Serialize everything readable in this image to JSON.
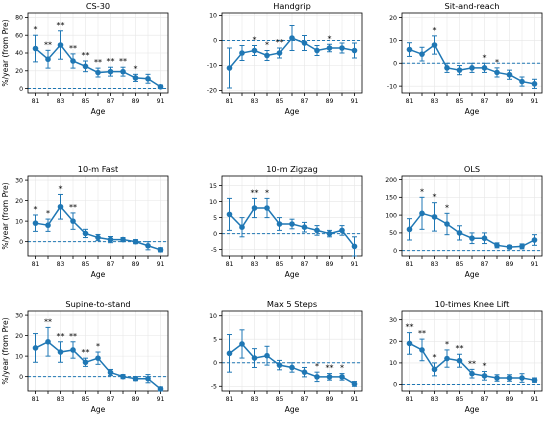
{
  "figure": {
    "style": {
      "series_color": "#1f77b4",
      "baseline_color": "#1f77b4",
      "grid_color": "#e6e6e6",
      "axis_color": "#000000"
    }
  },
  "chart_data": [
    {
      "type": "line",
      "title": "CS-30",
      "xlabel": "Age",
      "ylabel": "%/year (from Pre)",
      "x": [
        81,
        82,
        83,
        84,
        85,
        86,
        87,
        88,
        89,
        90,
        91
      ],
      "x_tick_labels": [
        "81",
        "83",
        "85",
        "87",
        "89",
        "91"
      ],
      "ylim": [
        -5,
        85
      ],
      "y_ticks": [
        0,
        20,
        40,
        60,
        80
      ],
      "values": [
        45,
        33,
        49,
        31,
        25,
        18,
        19,
        19,
        12,
        11,
        2
      ],
      "errors": [
        15,
        10,
        16,
        8,
        6,
        5,
        5,
        5,
        4,
        5,
        2
      ],
      "significance": [
        "*",
        "**",
        "**",
        "**",
        "**",
        "**",
        "**",
        "**",
        "*",
        "",
        ""
      ],
      "grid": true,
      "baseline": 0
    },
    {
      "type": "line",
      "title": "Handgrip",
      "xlabel": "Age",
      "ylabel": "",
      "x": [
        81,
        82,
        83,
        84,
        85,
        86,
        87,
        88,
        89,
        90,
        91
      ],
      "x_tick_labels": [
        "81",
        "83",
        "85",
        "87",
        "89",
        "91"
      ],
      "ylim": [
        -21,
        11
      ],
      "y_ticks": [
        -20,
        -10,
        0,
        10
      ],
      "values": [
        -11,
        -5,
        -4,
        -6,
        -5,
        1,
        -1,
        -4,
        -3,
        -3,
        -4
      ],
      "errors": [
        8,
        3,
        2,
        2,
        2,
        5,
        3,
        2,
        1.5,
        2,
        3
      ],
      "significance": [
        "",
        "",
        "*",
        "*",
        "**",
        "",
        "",
        "",
        "*",
        "",
        ""
      ],
      "grid": true,
      "baseline": 0
    },
    {
      "type": "line",
      "title": "Sit-and-reach",
      "xlabel": "Age",
      "ylabel": "",
      "x": [
        81,
        82,
        83,
        84,
        85,
        86,
        87,
        88,
        89,
        90,
        91
      ],
      "x_tick_labels": [
        "81",
        "83",
        "85",
        "87",
        "89",
        "91"
      ],
      "ylim": [
        -13,
        22
      ],
      "y_ticks": [
        -10,
        0,
        10,
        20
      ],
      "values": [
        6,
        4,
        8,
        -2,
        -3,
        -2,
        -2,
        -4,
        -5,
        -8,
        -9
      ],
      "errors": [
        3,
        3,
        4,
        2,
        2,
        2,
        2,
        2,
        2,
        2,
        2
      ],
      "significance": [
        "",
        "",
        "*",
        "",
        "",
        "",
        "*",
        "*",
        "",
        "",
        ""
      ],
      "grid": true,
      "baseline": 0
    },
    {
      "type": "line",
      "title": "10-m Fast",
      "xlabel": "Age",
      "ylabel": "%/year (from Pre)",
      "x": [
        81,
        82,
        83,
        84,
        85,
        86,
        87,
        88,
        89,
        90,
        91
      ],
      "x_tick_labels": [
        "81",
        "83",
        "85",
        "87",
        "89",
        "91"
      ],
      "ylim": [
        -7,
        32
      ],
      "y_ticks": [
        0,
        10,
        20,
        30
      ],
      "values": [
        9,
        8,
        17,
        10,
        4,
        2,
        1,
        1,
        0,
        -2,
        -4
      ],
      "errors": [
        4,
        3,
        6,
        4,
        2,
        1.5,
        1.5,
        1,
        1,
        2,
        1
      ],
      "significance": [
        "*",
        "*",
        "*",
        "**",
        "",
        "",
        "",
        "",
        "",
        "",
        ""
      ],
      "grid": true,
      "baseline": 0
    },
    {
      "type": "line",
      "title": "10-m Zigzag",
      "xlabel": "Age",
      "ylabel": "",
      "x": [
        81,
        82,
        83,
        84,
        85,
        86,
        87,
        88,
        89,
        90,
        91
      ],
      "x_tick_labels": [
        "81",
        "83",
        "85",
        "87",
        "89",
        "91"
      ],
      "ylim": [
        -7,
        18
      ],
      "y_ticks": [
        -5,
        0,
        5,
        10,
        15
      ],
      "values": [
        6,
        2,
        8,
        8,
        3,
        3,
        2,
        1,
        0,
        1,
        -4
      ],
      "errors": [
        5,
        3,
        3,
        3,
        2,
        1.5,
        1.5,
        1.5,
        1,
        1.5,
        3
      ],
      "significance": [
        "",
        "",
        "**",
        "*",
        "",
        "",
        "",
        "",
        "",
        "",
        ""
      ],
      "grid": true,
      "baseline": 0
    },
    {
      "type": "line",
      "title": "OLS",
      "xlabel": "Age",
      "ylabel": "",
      "x": [
        81,
        82,
        83,
        84,
        85,
        86,
        87,
        88,
        89,
        90,
        91
      ],
      "x_tick_labels": [
        "81",
        "83",
        "85",
        "87",
        "89",
        "91"
      ],
      "ylim": [
        -15,
        210
      ],
      "y_ticks": [
        0,
        50,
        100,
        150,
        200
      ],
      "values": [
        60,
        105,
        95,
        75,
        50,
        35,
        35,
        15,
        10,
        12,
        30
      ],
      "errors": [
        30,
        45,
        40,
        30,
        20,
        15,
        15,
        7,
        5,
        7,
        15
      ],
      "significance": [
        "",
        "*",
        "*",
        "*",
        "",
        "",
        "",
        "",
        "",
        "",
        ""
      ],
      "grid": true,
      "baseline": 0
    },
    {
      "type": "line",
      "title": "Supine-to-stand",
      "xlabel": "Age",
      "ylabel": "%/year (from Pre)",
      "x": [
        81,
        82,
        83,
        84,
        85,
        86,
        87,
        88,
        89,
        90,
        91
      ],
      "x_tick_labels": [
        "81",
        "83",
        "85",
        "87",
        "89",
        "91"
      ],
      "ylim": [
        -7,
        32
      ],
      "y_ticks": [
        0,
        10,
        20,
        30
      ],
      "values": [
        14,
        17,
        12,
        13,
        7,
        9,
        2,
        0,
        -1,
        -1,
        -6
      ],
      "errors": [
        7,
        7,
        5,
        4,
        2,
        3,
        1.5,
        1,
        1,
        2,
        1
      ],
      "significance": [
        "",
        "**",
        "**",
        "**",
        "**",
        "*",
        "",
        "",
        "",
        "",
        ""
      ],
      "grid": true,
      "baseline": 0
    },
    {
      "type": "line",
      "title": "Max 5 Steps",
      "xlabel": "Age",
      "ylabel": "",
      "x": [
        81,
        82,
        83,
        84,
        85,
        86,
        87,
        88,
        89,
        90,
        91
      ],
      "x_tick_labels": [
        "81",
        "83",
        "85",
        "87",
        "89",
        "91"
      ],
      "ylim": [
        -6,
        11
      ],
      "y_ticks": [
        -5,
        0,
        5,
        10
      ],
      "values": [
        2,
        4,
        1,
        1.5,
        -0.5,
        -1,
        -2,
        -3,
        -3,
        -3,
        -4.5
      ],
      "errors": [
        4,
        3,
        2,
        2,
        1,
        1,
        1,
        1,
        0.7,
        0.7,
        0.5
      ],
      "significance": [
        "",
        "",
        "",
        "",
        "",
        "",
        "",
        "*",
        "**",
        "*",
        ""
      ],
      "grid": true,
      "baseline": 0
    },
    {
      "type": "line",
      "title": "10-times Knee Lift",
      "xlabel": "Age",
      "ylabel": "",
      "x": [
        81,
        82,
        83,
        84,
        85,
        86,
        87,
        88,
        89,
        90,
        91
      ],
      "x_tick_labels": [
        "81",
        "83",
        "85",
        "87",
        "89",
        "91"
      ],
      "ylim": [
        -3,
        34
      ],
      "y_ticks": [
        0,
        10,
        20,
        30
      ],
      "values": [
        19,
        16,
        7,
        12,
        11,
        5,
        4,
        3,
        3,
        3,
        2
      ],
      "errors": [
        5,
        5,
        3,
        4,
        3,
        2,
        2,
        1.5,
        1.5,
        2,
        1
      ],
      "significance": [
        "**",
        "**",
        "*",
        "*",
        "**",
        "**",
        "*",
        "",
        "",
        "",
        ""
      ],
      "grid": true,
      "baseline": 0
    }
  ]
}
